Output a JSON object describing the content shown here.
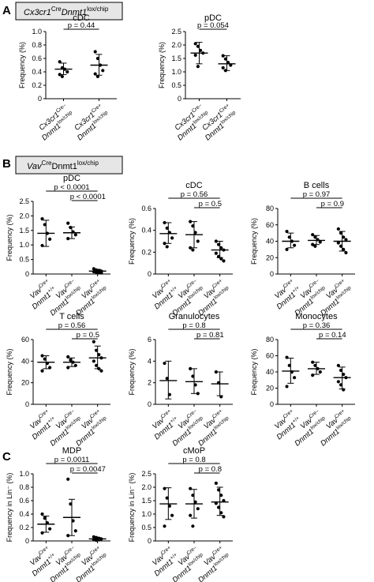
{
  "panels": {
    "A": {
      "letter": "A",
      "header_italic": "Cx3cr1",
      "header_sup": "Cre",
      "header_italic2": "Dnmt1",
      "header_sup2": "lox/chip"
    },
    "B": {
      "letter": "B",
      "header_italic": "Vav",
      "header_sup": "Cre",
      "header_plain": "Dnmt1",
      "header_sup2": "lox/chip"
    },
    "C": {
      "letter": "C"
    }
  },
  "xlabels": {
    "cx_ctrl": [
      "Cx3cr1",
      "Cre–",
      "Dnmt1",
      "lox/chip"
    ],
    "cx_mut": [
      "Cx3cr1",
      "Cre+",
      "Dnmt1",
      "lox/chip"
    ],
    "vav_wt": [
      "Vav",
      "Cre+",
      "Dnmt1",
      "+/+"
    ],
    "vav_ctrl": [
      "Vav",
      "Cre–",
      "Dnmt1",
      "lox/chip"
    ],
    "vav_mut": [
      "Vav",
      "Cre+",
      "Dnmt1",
      "lox/chip"
    ]
  },
  "chart_data": [
    {
      "id": "A1",
      "type": "scatter",
      "title": "cDC",
      "ylabel": "Frequency (%)",
      "ylim": [
        0,
        1
      ],
      "yticks": [
        "0",
        "0.2",
        "0.4",
        "0.6",
        "0.8",
        "1.0"
      ],
      "categories": [
        "Cx3cr1 Cre– Dnmt1 lox/chip",
        "Cx3cr1 Cre+ Dnmt1 lox/chip"
      ],
      "series": [
        {
          "mean": 0.44,
          "sd_low": 0.36,
          "sd_high": 0.53,
          "points": [
            0.55,
            0.46,
            0.44,
            0.4,
            0.36,
            0.33
          ]
        },
        {
          "mean": 0.5,
          "sd_low": 0.35,
          "sd_high": 0.66,
          "points": [
            0.7,
            0.6,
            0.5,
            0.42,
            0.37,
            0.33
          ]
        }
      ],
      "pvalues": [
        {
          "text": "p = 0.44",
          "from": 0,
          "to": 1
        }
      ]
    },
    {
      "id": "A2",
      "type": "scatter",
      "title": "pDC",
      "ylabel": "Frequency (%)",
      "ylim": [
        0,
        2.5
      ],
      "yticks": [
        "0",
        "0.5",
        "1.0",
        "1.5",
        "2.0",
        "2.5"
      ],
      "categories": [
        "Cx3cr1 Cre– Dnmt1 lox/chip",
        "Cx3cr1 Cre+ Dnmt1 lox/chip"
      ],
      "series": [
        {
          "mean": 1.7,
          "sd_low": 1.3,
          "sd_high": 2.1,
          "points": [
            2.05,
            1.95,
            1.8,
            1.7,
            1.62,
            1.2
          ]
        },
        {
          "mean": 1.3,
          "sd_low": 1.05,
          "sd_high": 1.6,
          "points": [
            1.6,
            1.48,
            1.35,
            1.25,
            1.15,
            1.05
          ]
        }
      ],
      "pvalues": [
        {
          "text": "p = 0.054",
          "from": 0,
          "to": 1
        }
      ]
    },
    {
      "id": "B1",
      "type": "scatter",
      "title": "pDC",
      "ylabel": "Frequency (%)",
      "ylim": [
        0,
        2.5
      ],
      "yticks": [
        "0",
        "0.5",
        "1.0",
        "1.5",
        "2.0",
        "2.5"
      ],
      "categories": [
        "Vav Cre+ Dnmt1 +/+",
        "Vav Cre– Dnmt1 lox/chip",
        "Vav Cre+ Dnmt1 lox/chip"
      ],
      "series": [
        {
          "mean": 1.4,
          "sd_low": 0.95,
          "sd_high": 1.85,
          "points": [
            1.9,
            1.7,
            1.4,
            1.2,
            0.98
          ]
        },
        {
          "mean": 1.42,
          "sd_low": 1.22,
          "sd_high": 1.62,
          "points": [
            1.75,
            1.6,
            1.45,
            1.35,
            1.22
          ]
        },
        {
          "mean": 0.1,
          "sd_low": 0.04,
          "sd_high": 0.16,
          "points": [
            0.18,
            0.14,
            0.12,
            0.1,
            0.08,
            0.06,
            0.05,
            0.04
          ]
        }
      ],
      "pvalues": [
        {
          "text": "p < 0.0001",
          "from": 0,
          "to": 2
        },
        {
          "text": "p < 0.0001",
          "from": 1,
          "to": 2
        }
      ]
    },
    {
      "id": "B2",
      "type": "scatter",
      "title": "cDC",
      "ylabel": "Frequency (%)",
      "ylim": [
        0,
        0.6
      ],
      "yticks": [
        "0",
        "0.2",
        "0.4",
        "0.6"
      ],
      "categories": [
        "Vav Cre+ Dnmt1 +/+",
        "Vav Cre– Dnmt1 lox/chip",
        "Vav Cre+ Dnmt1 lox/chip"
      ],
      "series": [
        {
          "mean": 0.37,
          "sd_low": 0.28,
          "sd_high": 0.47,
          "points": [
            0.47,
            0.42,
            0.38,
            0.33,
            0.28,
            0.25
          ]
        },
        {
          "mean": 0.36,
          "sd_low": 0.24,
          "sd_high": 0.48,
          "points": [
            0.48,
            0.44,
            0.38,
            0.3,
            0.24,
            0.22
          ]
        },
        {
          "mean": 0.22,
          "sd_low": 0.15,
          "sd_high": 0.3,
          "points": [
            0.3,
            0.27,
            0.24,
            0.22,
            0.19,
            0.16,
            0.14,
            0.12
          ]
        }
      ],
      "pvalues": [
        {
          "text": "p = 0.56",
          "from": 0,
          "to": 2
        },
        {
          "text": "p = 0.5",
          "from": 1,
          "to": 2
        }
      ]
    },
    {
      "id": "B3",
      "type": "scatter",
      "title": "B cells",
      "ylabel": "Frequency (%)",
      "ylim": [
        0,
        80
      ],
      "yticks": [
        "0",
        "20",
        "40",
        "60",
        "80"
      ],
      "categories": [
        "Vav Cre+ Dnmt1 +/+",
        "Vav Cre– Dnmt1 lox/chip",
        "Vav Cre+ Dnmt1 lox/chip"
      ],
      "series": [
        {
          "mean": 40,
          "sd_low": 32,
          "sd_high": 50,
          "points": [
            52,
            45,
            40,
            35,
            30
          ]
        },
        {
          "mean": 41,
          "sd_low": 36,
          "sd_high": 47,
          "points": [
            48,
            45,
            42,
            39,
            36,
            34
          ]
        },
        {
          "mean": 40,
          "sd_low": 28,
          "sd_high": 52,
          "points": [
            55,
            50,
            45,
            42,
            38,
            34,
            30,
            26
          ]
        }
      ],
      "pvalues": [
        {
          "text": "p = 0.97",
          "from": 0,
          "to": 2
        },
        {
          "text": "p = 0.9",
          "from": 1,
          "to": 2
        }
      ]
    },
    {
      "id": "B4",
      "type": "scatter",
      "title": "T cells",
      "ylabel": "Frequency (%)",
      "ylim": [
        0,
        60
      ],
      "yticks": [
        "0",
        "20",
        "40",
        "60"
      ],
      "categories": [
        "Vav Cre+ Dnmt1 +/+",
        "Vav Cre– Dnmt1 lox/chip",
        "Vav Cre+ Dnmt1 lox/chip"
      ],
      "series": [
        {
          "mean": 39,
          "sd_low": 33,
          "sd_high": 45,
          "points": [
            45,
            42,
            38,
            34,
            31
          ]
        },
        {
          "mean": 39,
          "sd_low": 35,
          "sd_high": 43,
          "points": [
            44,
            41,
            39,
            36,
            34
          ]
        },
        {
          "mean": 43,
          "sd_low": 33,
          "sd_high": 54,
          "points": [
            58,
            50,
            46,
            43,
            40,
            36,
            33,
            31
          ]
        }
      ],
      "pvalues": [
        {
          "text": "p = 0.56",
          "from": 0,
          "to": 2
        },
        {
          "text": "p = 0.5",
          "from": 1,
          "to": 2
        }
      ]
    },
    {
      "id": "B5",
      "type": "scatter",
      "title": "Granulocytes",
      "ylabel": "Frequency (%)",
      "ylim": [
        0,
        6
      ],
      "yticks": [
        "0",
        "2",
        "4",
        "6"
      ],
      "categories": [
        "Vav Cre+ Dnmt1 +/+",
        "Vav Cre– Dnmt1 lox/chip",
        "Vav Cre+ Dnmt1 lox/chip"
      ],
      "series": [
        {
          "mean": 2.2,
          "sd_low": 0.5,
          "sd_high": 4.0,
          "points": [
            3.8,
            2.4,
            0.9
          ]
        },
        {
          "mean": 2.1,
          "sd_low": 1.0,
          "sd_high": 3.3,
          "points": [
            3.3,
            2.6,
            1.8,
            1.0
          ]
        },
        {
          "mean": 1.9,
          "sd_low": 0.8,
          "sd_high": 3.0,
          "points": [
            3.0,
            2.0,
            0.7
          ]
        }
      ],
      "pvalues": [
        {
          "text": "p = 0.8",
          "from": 0,
          "to": 2
        },
        {
          "text": "p = 0.81",
          "from": 1,
          "to": 2
        }
      ]
    },
    {
      "id": "B6",
      "type": "scatter",
      "title": "Monocytes",
      "ylabel": "Frequency (%)",
      "ylim": [
        0,
        80
      ],
      "yticks": [
        "0",
        "20",
        "40",
        "60",
        "80"
      ],
      "categories": [
        "Vav Cre+ Dnmt1 +/+",
        "Vav Cre– Dnmt1 lox/chip",
        "Vav Cre+ Dnmt1 lox/chip"
      ],
      "series": [
        {
          "mean": 41,
          "sd_low": 26,
          "sd_high": 57,
          "points": [
            58,
            48,
            40,
            33,
            22
          ]
        },
        {
          "mean": 44,
          "sd_low": 37,
          "sd_high": 52,
          "points": [
            52,
            48,
            44,
            40,
            36
          ]
        },
        {
          "mean": 33,
          "sd_low": 19,
          "sd_high": 46,
          "points": [
            48,
            42,
            37,
            33,
            28,
            24,
            18
          ]
        }
      ],
      "pvalues": [
        {
          "text": "p = 0.36",
          "from": 0,
          "to": 2
        },
        {
          "text": "p = 0.14",
          "from": 1,
          "to": 2
        }
      ]
    },
    {
      "id": "C1",
      "type": "scatter",
      "title": "MDP",
      "ylabel": "Frequency in Lin⁻ (%)",
      "ylim": [
        0,
        1
      ],
      "yticks": [
        "0",
        "0.2",
        "0.4",
        "0.6",
        "0.8",
        "1.0"
      ],
      "categories": [
        "Vav Cre+ Dnmt1 +/+",
        "Vav Cre– Dnmt1 lox/chip",
        "Vav Cre+ Dnmt1 lox/chip"
      ],
      "series": [
        {
          "mean": 0.25,
          "sd_low": 0.13,
          "sd_high": 0.37,
          "points": [
            0.4,
            0.34,
            0.27,
            0.18,
            0.12
          ]
        },
        {
          "mean": 0.35,
          "sd_low": 0.08,
          "sd_high": 0.62,
          "points": [
            0.92,
            0.55,
            0.3,
            0.15,
            0.08
          ]
        },
        {
          "mean": 0.03,
          "sd_low": 0.01,
          "sd_high": 0.05,
          "points": [
            0.06,
            0.05,
            0.04,
            0.03,
            0.02,
            0.01
          ]
        }
      ],
      "pvalues": [
        {
          "text": "p = 0.0011",
          "from": 0,
          "to": 2
        },
        {
          "text": "p = 0.0047",
          "from": 1,
          "to": 2
        }
      ]
    },
    {
      "id": "C2",
      "type": "scatter",
      "title": "cMoP",
      "ylabel": "Frequency in Lin⁻ (%)",
      "ylim": [
        0,
        2.5
      ],
      "yticks": [
        "0",
        "0.5",
        "1.0",
        "1.5",
        "2.0",
        "2.5"
      ],
      "categories": [
        "Vav Cre+ Dnmt1 +/+",
        "Vav Cre– Dnmt1 lox/chip",
        "Vav Cre+ Dnmt1 lox/chip"
      ],
      "series": [
        {
          "mean": 1.38,
          "sd_low": 0.8,
          "sd_high": 1.98,
          "points": [
            1.95,
            1.6,
            1.3,
            0.95,
            0.55
          ]
        },
        {
          "mean": 1.38,
          "sd_low": 0.85,
          "sd_high": 1.92,
          "points": [
            1.95,
            1.7,
            1.45,
            1.2,
            0.95,
            0.55
          ]
        },
        {
          "mean": 1.45,
          "sd_low": 0.95,
          "sd_high": 2.0,
          "points": [
            2.15,
            1.9,
            1.7,
            1.5,
            1.4,
            1.25,
            1.05,
            0.9
          ]
        }
      ],
      "pvalues": [
        {
          "text": "p = 0.8",
          "from": 0,
          "to": 2
        },
        {
          "text": "p = 0.8",
          "from": 1,
          "to": 2
        }
      ]
    }
  ]
}
